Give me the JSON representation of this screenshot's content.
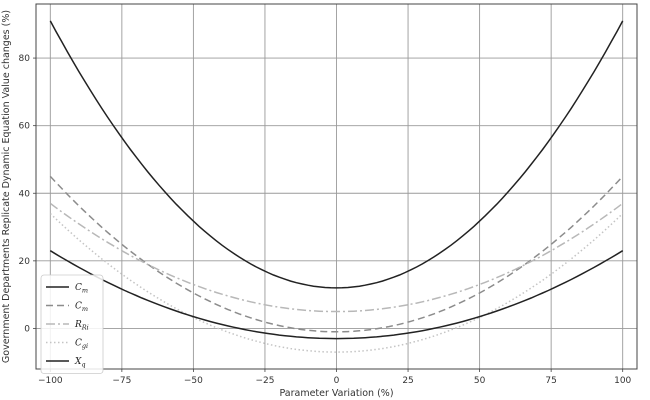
{
  "chart_data": {
    "type": "line",
    "xlabel": "Parameter Variation (%)",
    "ylabel": "Government Departments Replicate Dynamic Equation Value changes (%)",
    "xlim": [
      -105,
      105
    ],
    "ylim": [
      -12,
      96
    ],
    "xticks": [
      -100,
      -75,
      -50,
      -25,
      0,
      25,
      50,
      75,
      100
    ],
    "yticks": [
      0,
      20,
      40,
      60,
      80
    ],
    "grid": true,
    "legend_position": "bottom-left",
    "series": [
      {
        "name": "C_m",
        "legend_main": "C",
        "legend_sub": "m",
        "style": "solid",
        "color": "#222222",
        "a": 12,
        "c": 79,
        "p": 2
      },
      {
        "name": "C_m",
        "legend_main": "C",
        "legend_sub": "m",
        "style": "dashed",
        "color": "#8c8c8c",
        "a": -1,
        "c": 46,
        "p": 2
      },
      {
        "name": "R_Ri",
        "legend_main": "R",
        "legend_sub": "Ri",
        "style": "dashdot",
        "color": "#b8b8b8",
        "a": 5,
        "c": 32,
        "p": 2
      },
      {
        "name": "C_gi",
        "legend_main": "C",
        "legend_sub": "gi",
        "style": "dotted",
        "color": "#c4c4c4",
        "a": -7,
        "c": 41,
        "p": 2
      },
      {
        "name": "X_q",
        "legend_main": "X",
        "legend_sub": "q",
        "style": "solid",
        "color": "#222222",
        "a": -3,
        "c": 26,
        "p": 2
      }
    ]
  }
}
